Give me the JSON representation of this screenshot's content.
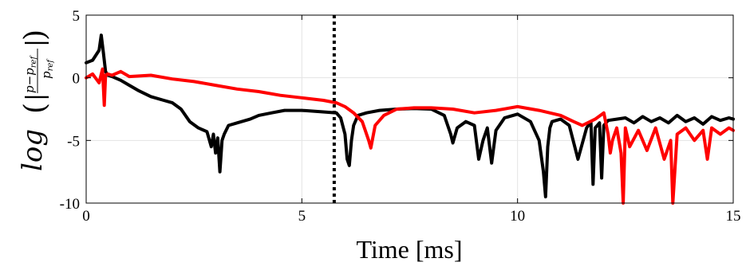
{
  "chart_data": {
    "type": "line",
    "title": "",
    "xlabel": "Time [ms]",
    "ylabel": "log ( | (p−p_ref) / p_ref | )",
    "ylabel_parts": {
      "fn": "log",
      "numerator": "p−p",
      "denominator": "p",
      "subscript": "ref"
    },
    "xlim": [
      0,
      15
    ],
    "ylim": [
      -10,
      5
    ],
    "xticks": [
      0,
      5,
      10,
      15
    ],
    "yticks": [
      -10,
      -5,
      0,
      5
    ],
    "xtick_labels": [
      "0",
      "5",
      "10",
      "15"
    ],
    "ytick_labels": [
      "-10",
      "-5",
      "0",
      "5"
    ],
    "grid": true,
    "legend": "none",
    "vline": {
      "x": 5.75,
      "color": "#000000",
      "style": "dotted"
    },
    "series": [
      {
        "color": "#000000",
        "x": [
          0,
          0.15,
          0.3,
          0.35,
          0.4,
          0.45,
          0.5,
          0.6,
          0.8,
          1.0,
          1.2,
          1.5,
          1.8,
          2.0,
          2.2,
          2.4,
          2.6,
          2.8,
          2.9,
          2.95,
          3.0,
          3.05,
          3.1,
          3.15,
          3.2,
          3.3,
          3.5,
          3.8,
          4.0,
          4.3,
          4.6,
          5.0,
          5.4,
          5.8,
          5.9,
          6.0,
          6.05,
          6.1,
          6.15,
          6.2,
          6.3,
          6.5,
          6.8,
          7.2,
          7.6,
          8.0,
          8.3,
          8.45,
          8.5,
          8.6,
          8.8,
          9.0,
          9.1,
          9.2,
          9.3,
          9.4,
          9.5,
          9.7,
          10.0,
          10.3,
          10.5,
          10.6,
          10.65,
          10.7,
          10.75,
          10.8,
          11.0,
          11.2,
          11.4,
          11.6,
          11.7,
          11.75,
          11.8,
          11.9,
          11.95,
          12.0,
          12.1,
          12.3,
          12.5,
          12.7,
          12.9,
          13.1,
          13.3,
          13.5,
          13.7,
          13.9,
          14.1,
          14.3,
          14.5,
          14.7,
          14.9,
          15.0
        ],
        "values": [
          1.2,
          1.4,
          2.2,
          3.4,
          2.0,
          0.5,
          0.2,
          0.1,
          -0.2,
          -0.6,
          -1.0,
          -1.5,
          -1.8,
          -2.0,
          -2.5,
          -3.5,
          -4.0,
          -4.3,
          -5.5,
          -4.5,
          -6.0,
          -4.8,
          -7.5,
          -5.0,
          -4.5,
          -3.8,
          -3.6,
          -3.3,
          -3.0,
          -2.8,
          -2.6,
          -2.6,
          -2.7,
          -2.8,
          -3.2,
          -4.5,
          -6.5,
          -7.0,
          -5.0,
          -3.8,
          -3.0,
          -2.8,
          -2.6,
          -2.5,
          -2.45,
          -2.5,
          -3.0,
          -4.5,
          -5.2,
          -4.0,
          -3.5,
          -3.8,
          -6.5,
          -5.0,
          -4.0,
          -6.8,
          -4.2,
          -3.2,
          -2.9,
          -3.5,
          -5.0,
          -7.5,
          -9.5,
          -5.5,
          -4.0,
          -3.5,
          -3.3,
          -3.8,
          -6.5,
          -4.0,
          -3.5,
          -8.5,
          -4.0,
          -3.6,
          -8.0,
          -3.8,
          -3.4,
          -3.3,
          -3.2,
          -3.6,
          -3.1,
          -3.5,
          -3.2,
          -3.6,
          -3.0,
          -3.5,
          -3.2,
          -3.7,
          -3.1,
          -3.4,
          -3.2,
          -3.3
        ]
      },
      {
        "color": "#ff0000",
        "x": [
          0,
          0.15,
          0.3,
          0.38,
          0.42,
          0.45,
          0.5,
          0.6,
          0.8,
          1.0,
          1.5,
          2.0,
          2.5,
          3.0,
          3.5,
          4.0,
          4.5,
          5.0,
          5.5,
          5.8,
          6.0,
          6.2,
          6.4,
          6.55,
          6.6,
          6.7,
          6.9,
          7.2,
          7.6,
          8.0,
          8.5,
          9.0,
          9.5,
          10.0,
          10.5,
          11.0,
          11.3,
          11.5,
          11.8,
          12.0,
          12.1,
          12.15,
          12.2,
          12.3,
          12.4,
          12.45,
          12.5,
          12.6,
          12.8,
          13.0,
          13.2,
          13.4,
          13.55,
          13.6,
          13.7,
          13.9,
          14.1,
          14.3,
          14.4,
          14.5,
          14.7,
          14.9,
          15.0
        ],
        "values": [
          0.0,
          0.3,
          -0.4,
          0.7,
          -2.2,
          0.2,
          0.3,
          0.2,
          0.5,
          0.1,
          0.2,
          -0.1,
          -0.3,
          -0.6,
          -0.9,
          -1.1,
          -1.4,
          -1.6,
          -1.8,
          -2.0,
          -2.3,
          -2.8,
          -3.5,
          -5.0,
          -5.6,
          -3.8,
          -3.0,
          -2.5,
          -2.4,
          -2.4,
          -2.5,
          -2.8,
          -2.6,
          -2.3,
          -2.6,
          -3.0,
          -3.5,
          -3.8,
          -3.3,
          -2.8,
          -4.5,
          -6.0,
          -5.0,
          -4.0,
          -6.0,
          -10.0,
          -4.0,
          -5.5,
          -4.2,
          -5.8,
          -4.0,
          -6.5,
          -5.0,
          -10.0,
          -4.5,
          -4.0,
          -5.0,
          -4.2,
          -6.5,
          -4.0,
          -4.5,
          -4.0,
          -4.2
        ]
      }
    ]
  }
}
